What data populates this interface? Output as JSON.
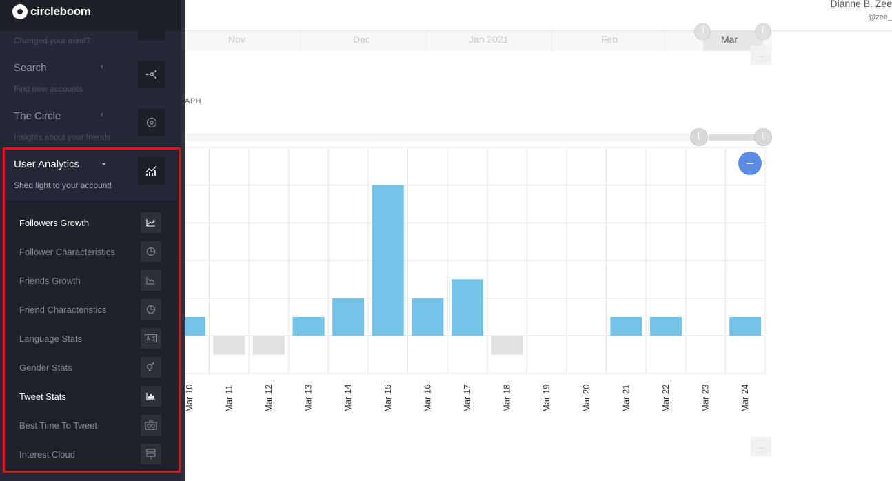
{
  "header": {
    "user_name": "Dianne B. Zee",
    "user_handle": "@zee_"
  },
  "navigator": {
    "labels": [
      "Nov",
      "Dec",
      "Jan 2021",
      "Feb",
      "Mar"
    ]
  },
  "graph_caption": "APH",
  "more_button": "...",
  "zoom_out_symbol": "–",
  "sidebar": {
    "logo_text": "circleboom",
    "sections": [
      {
        "title": "",
        "subtitle": "Changed your mind?",
        "icon": "unfollow-icon"
      },
      {
        "title": "Search",
        "subtitle": "Find new accounts",
        "icon": "network-icon"
      },
      {
        "title": "The Circle",
        "subtitle": "Insights about your friends",
        "icon": "circle-icon"
      },
      {
        "title": "User Analytics",
        "subtitle": "Shed light to your account!",
        "icon": "analytics-chart-icon"
      }
    ],
    "chevron_collapsed": "‹",
    "chevron_expanded": "⌄",
    "items": [
      {
        "label": "Followers Growth",
        "icon": "trend-up-icon"
      },
      {
        "label": "Follower Characteristics",
        "icon": "pie-chart-icon"
      },
      {
        "label": "Friends Growth",
        "icon": "trend-down-icon"
      },
      {
        "label": "Friend Characteristics",
        "icon": "pie-chart-icon"
      },
      {
        "label": "Language Stats",
        "icon": "translate-icon"
      },
      {
        "label": "Gender Stats",
        "icon": "gender-icon"
      },
      {
        "label": "Tweet Stats",
        "icon": "bar-chart-icon"
      },
      {
        "label": "Best Time To Tweet",
        "icon": "camera-icon"
      },
      {
        "label": "Interest Cloud",
        "icon": "signpost-icon"
      }
    ]
  },
  "chart_data": {
    "type": "bar",
    "categories": [
      "Mar 10",
      "Mar 11",
      "Mar 12",
      "Mar 13",
      "Mar 14",
      "Mar 15",
      "Mar 16",
      "Mar 17",
      "Mar 18",
      "Mar 19",
      "Mar 20",
      "Mar 21",
      "Mar 22",
      "Mar 23",
      "Mar 24"
    ],
    "values": [
      1,
      -1,
      -1,
      1,
      2,
      8,
      2,
      3,
      -1,
      0,
      0,
      1,
      1,
      0,
      1
    ],
    "ylim": [
      -2,
      10
    ],
    "grid": true,
    "colors": {
      "positive": "#74c3e6",
      "negative": "#e1e1e1"
    }
  }
}
